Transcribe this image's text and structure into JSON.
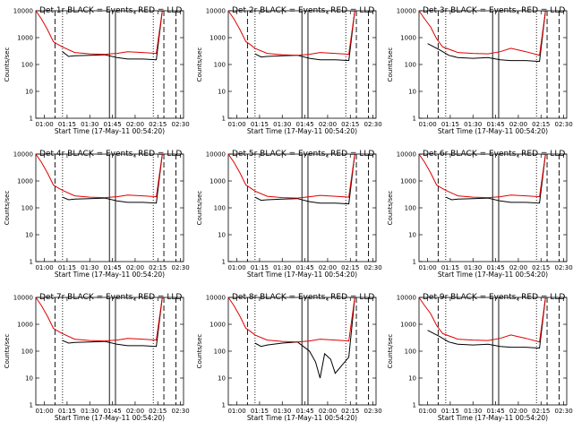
{
  "common": {
    "ylabel": "Counts/sec",
    "xlabel": "Start Time (17-May-11 00:54:20)",
    "x_tick_labels": [
      "01:00",
      "01:15",
      "01:30",
      "01:45",
      "02:00",
      "02:15",
      "02:30"
    ],
    "y_tick_labels": [
      "1",
      "10",
      "100",
      "1000",
      "10000"
    ]
  },
  "chart_data": [
    {
      "type": "line",
      "title": "Det 1r BLACK = Events, RED = LLD",
      "y_scale": "log",
      "xlim": [
        "00:54:20",
        "02:32:00"
      ],
      "ylim": [
        1,
        10000
      ],
      "x_ticks": [
        "01:00",
        "01:15",
        "01:30",
        "01:45",
        "02:00",
        "02:15",
        "02:30"
      ],
      "y_ticks": [
        1,
        10,
        100,
        1000,
        10000
      ],
      "vlines_solid": [
        "01:43",
        "01:47"
      ],
      "vlines_dashed": [
        "01:07",
        "02:19",
        "02:27"
      ],
      "vlines_dotted": [
        "01:12",
        "02:12"
      ],
      "series": [
        {
          "name": "Events",
          "color": "#000000",
          "x": [
            "01:12",
            "01:16",
            "01:20",
            "01:30",
            "01:40",
            "01:48",
            "01:55",
            "02:05",
            "02:14",
            "02:18"
          ],
          "y": [
            300,
            200,
            210,
            220,
            230,
            180,
            160,
            160,
            150,
            10000
          ]
        },
        {
          "name": "LLD",
          "color": "#e00000",
          "x": [
            "00:54",
            "00:58",
            "01:02",
            "01:06",
            "01:08",
            "01:12",
            "01:20",
            "01:30",
            "01:40",
            "01:48",
            "01:55",
            "02:05",
            "02:14",
            "02:18"
          ],
          "y": [
            10000,
            5000,
            2000,
            700,
            600,
            450,
            280,
            250,
            240,
            260,
            300,
            280,
            260,
            10000
          ]
        }
      ]
    },
    {
      "type": "line",
      "title": "Det 2r BLACK = Events, RED = LLD",
      "y_scale": "log",
      "xlim": [
        "00:54:20",
        "02:32:00"
      ],
      "ylim": [
        1,
        10000
      ],
      "x_ticks": [
        "01:00",
        "01:15",
        "01:30",
        "01:45",
        "02:00",
        "02:15",
        "02:30"
      ],
      "y_ticks": [
        1,
        10,
        100,
        1000,
        10000
      ],
      "vlines_solid": [
        "01:43",
        "01:47"
      ],
      "vlines_dashed": [
        "01:07",
        "02:19",
        "02:27"
      ],
      "vlines_dotted": [
        "01:12",
        "02:12"
      ],
      "series": [
        {
          "name": "Events",
          "color": "#000000",
          "x": [
            "01:12",
            "01:16",
            "01:20",
            "01:30",
            "01:40",
            "01:48",
            "01:55",
            "02:05",
            "02:14",
            "02:18"
          ],
          "y": [
            250,
            190,
            200,
            210,
            220,
            170,
            150,
            150,
            140,
            10000
          ]
        },
        {
          "name": "LLD",
          "color": "#e00000",
          "x": [
            "00:54",
            "00:58",
            "01:02",
            "01:06",
            "01:08",
            "01:12",
            "01:20",
            "01:30",
            "01:40",
            "01:48",
            "01:55",
            "02:05",
            "02:14",
            "02:18"
          ],
          "y": [
            10000,
            5000,
            2000,
            700,
            600,
            400,
            260,
            230,
            220,
            240,
            280,
            260,
            240,
            10000
          ]
        }
      ]
    },
    {
      "type": "line",
      "title": "Det 3r BLACK = Events, RED = LLD",
      "y_scale": "log",
      "xlim": [
        "00:54:20",
        "02:32:00"
      ],
      "ylim": [
        1,
        10000
      ],
      "x_ticks": [
        "01:00",
        "01:15",
        "01:30",
        "01:45",
        "02:00",
        "02:15",
        "02:30"
      ],
      "y_ticks": [
        1,
        10,
        100,
        1000,
        10000
      ],
      "vlines_solid": [
        "01:43",
        "01:47"
      ],
      "vlines_dashed": [
        "01:07",
        "02:19",
        "02:27"
      ],
      "vlines_dotted": [
        "01:12",
        "02:12"
      ],
      "series": [
        {
          "name": "Events",
          "color": "#000000",
          "x": [
            "01:00",
            "01:08",
            "01:14",
            "01:20",
            "01:30",
            "01:40",
            "01:48",
            "01:55",
            "02:05",
            "02:14",
            "02:18"
          ],
          "y": [
            600,
            350,
            220,
            180,
            170,
            180,
            150,
            140,
            140,
            130,
            10000
          ]
        },
        {
          "name": "LLD",
          "color": "#e00000",
          "x": [
            "00:54",
            "00:58",
            "01:02",
            "01:06",
            "01:10",
            "01:20",
            "01:30",
            "01:40",
            "01:48",
            "01:55",
            "02:05",
            "02:14",
            "02:18"
          ],
          "y": [
            10000,
            5000,
            2500,
            900,
            450,
            280,
            260,
            250,
            300,
            400,
            300,
            220,
            10000
          ]
        }
      ]
    },
    {
      "type": "line",
      "title": "Det 4r BLACK = Events, RED = LLD",
      "y_scale": "log",
      "xlim": [
        "00:54:20",
        "02:32:00"
      ],
      "ylim": [
        1,
        10000
      ],
      "x_ticks": [
        "01:00",
        "01:15",
        "01:30",
        "01:45",
        "02:00",
        "02:15",
        "02:30"
      ],
      "y_ticks": [
        1,
        10,
        100,
        1000,
        10000
      ],
      "vlines_solid": [
        "01:43",
        "01:47"
      ],
      "vlines_dashed": [
        "01:07",
        "02:19",
        "02:27"
      ],
      "vlines_dotted": [
        "01:12",
        "02:12"
      ],
      "series": [
        {
          "name": "Events",
          "color": "#000000",
          "x": [
            "01:12",
            "01:16",
            "01:20",
            "01:30",
            "01:40",
            "01:48",
            "01:55",
            "02:05",
            "02:14",
            "02:18"
          ],
          "y": [
            250,
            200,
            210,
            220,
            230,
            180,
            160,
            160,
            150,
            10000
          ]
        },
        {
          "name": "LLD",
          "color": "#e00000",
          "x": [
            "00:54",
            "00:58",
            "01:02",
            "01:06",
            "01:08",
            "01:12",
            "01:20",
            "01:30",
            "01:40",
            "01:48",
            "01:55",
            "02:05",
            "02:14",
            "02:18"
          ],
          "y": [
            10000,
            5000,
            2000,
            700,
            600,
            450,
            280,
            250,
            240,
            260,
            300,
            280,
            260,
            10000
          ]
        }
      ]
    },
    {
      "type": "line",
      "title": "Det 5r BLACK = Events, RED = LLD",
      "y_scale": "log",
      "xlim": [
        "00:54:20",
        "02:32:00"
      ],
      "ylim": [
        1,
        10000
      ],
      "x_ticks": [
        "01:00",
        "01:15",
        "01:30",
        "01:45",
        "02:00",
        "02:15",
        "02:30"
      ],
      "y_ticks": [
        1,
        10,
        100,
        1000,
        10000
      ],
      "vlines_solid": [
        "01:43",
        "01:47"
      ],
      "vlines_dashed": [
        "01:07",
        "02:19",
        "02:27"
      ],
      "vlines_dotted": [
        "01:12",
        "02:12"
      ],
      "series": [
        {
          "name": "Events",
          "color": "#000000",
          "x": [
            "01:12",
            "01:16",
            "01:20",
            "01:30",
            "01:40",
            "01:48",
            "01:55",
            "02:05",
            "02:14",
            "02:18"
          ],
          "y": [
            250,
            190,
            200,
            210,
            220,
            170,
            150,
            150,
            140,
            10000
          ]
        },
        {
          "name": "LLD",
          "color": "#e00000",
          "x": [
            "00:54",
            "00:58",
            "01:02",
            "01:06",
            "01:08",
            "01:12",
            "01:20",
            "01:30",
            "01:40",
            "01:48",
            "01:55",
            "02:05",
            "02:14",
            "02:18"
          ],
          "y": [
            10000,
            5000,
            2000,
            700,
            600,
            420,
            270,
            240,
            230,
            260,
            290,
            270,
            250,
            10000
          ]
        }
      ]
    },
    {
      "type": "line",
      "title": "Det 6r BLACK = Events, RED = LLD",
      "y_scale": "log",
      "xlim": [
        "00:54:20",
        "02:32:00"
      ],
      "ylim": [
        1,
        10000
      ],
      "x_ticks": [
        "01:00",
        "01:15",
        "01:30",
        "01:45",
        "02:00",
        "02:15",
        "02:30"
      ],
      "y_ticks": [
        1,
        10,
        100,
        1000,
        10000
      ],
      "vlines_solid": [
        "01:43",
        "01:47"
      ],
      "vlines_dashed": [
        "01:07",
        "02:19",
        "02:27"
      ],
      "vlines_dotted": [
        "01:12",
        "02:12"
      ],
      "series": [
        {
          "name": "Events",
          "color": "#000000",
          "x": [
            "01:12",
            "01:16",
            "01:20",
            "01:30",
            "01:40",
            "01:48",
            "01:55",
            "02:05",
            "02:14",
            "02:18"
          ],
          "y": [
            250,
            200,
            210,
            220,
            230,
            180,
            160,
            160,
            150,
            10000
          ]
        },
        {
          "name": "LLD",
          "color": "#e00000",
          "x": [
            "00:54",
            "00:58",
            "01:02",
            "01:06",
            "01:08",
            "01:12",
            "01:20",
            "01:30",
            "01:40",
            "01:48",
            "01:55",
            "02:05",
            "02:14",
            "02:18"
          ],
          "y": [
            10000,
            5000,
            2000,
            700,
            600,
            450,
            280,
            250,
            240,
            260,
            300,
            280,
            260,
            10000
          ]
        }
      ]
    },
    {
      "type": "line",
      "title": "Det 7r BLACK = Events, RED = LLD",
      "y_scale": "log",
      "xlim": [
        "00:54:20",
        "02:32:00"
      ],
      "ylim": [
        1,
        10000
      ],
      "x_ticks": [
        "01:00",
        "01:15",
        "01:30",
        "01:45",
        "02:00",
        "02:15",
        "02:30"
      ],
      "y_ticks": [
        1,
        10,
        100,
        1000,
        10000
      ],
      "vlines_solid": [
        "01:43",
        "01:47"
      ],
      "vlines_dashed": [
        "01:07",
        "02:19",
        "02:27"
      ],
      "vlines_dotted": [
        "01:12",
        "02:12"
      ],
      "series": [
        {
          "name": "Events",
          "color": "#000000",
          "x": [
            "01:12",
            "01:16",
            "01:20",
            "01:30",
            "01:40",
            "01:48",
            "01:55",
            "02:05",
            "02:14",
            "02:18"
          ],
          "y": [
            250,
            200,
            210,
            220,
            230,
            180,
            160,
            160,
            150,
            10000
          ]
        },
        {
          "name": "LLD",
          "color": "#e00000",
          "x": [
            "00:54",
            "00:58",
            "01:02",
            "01:06",
            "01:08",
            "01:12",
            "01:20",
            "01:30",
            "01:40",
            "01:48",
            "01:55",
            "02:05",
            "02:14",
            "02:18"
          ],
          "y": [
            10000,
            5000,
            2000,
            700,
            600,
            450,
            280,
            250,
            240,
            260,
            300,
            280,
            260,
            10000
          ]
        }
      ]
    },
    {
      "type": "line",
      "title": "Det 8r BLACK = Events, RED = LLD",
      "y_scale": "log",
      "xlim": [
        "00:54:20",
        "02:32:00"
      ],
      "ylim": [
        1,
        10000
      ],
      "x_ticks": [
        "01:00",
        "01:15",
        "01:30",
        "01:45",
        "02:00",
        "02:15",
        "02:30"
      ],
      "y_ticks": [
        1,
        10,
        100,
        1000,
        10000
      ],
      "vlines_solid": [
        "01:43",
        "01:47"
      ],
      "vlines_dashed": [
        "01:07",
        "02:19",
        "02:27"
      ],
      "vlines_dotted": [
        "01:12",
        "02:12"
      ],
      "series": [
        {
          "name": "Events",
          "color": "#000000",
          "x": [
            "01:12",
            "01:16",
            "01:20",
            "01:30",
            "01:40",
            "01:48",
            "01:52",
            "01:55",
            "01:58",
            "02:02",
            "02:05",
            "02:14",
            "02:18"
          ],
          "y": [
            200,
            150,
            170,
            200,
            220,
            100,
            40,
            10,
            80,
            50,
            15,
            60,
            10000
          ]
        },
        {
          "name": "LLD",
          "color": "#e00000",
          "x": [
            "00:54",
            "00:58",
            "01:02",
            "01:06",
            "01:08",
            "01:12",
            "01:20",
            "01:30",
            "01:40",
            "01:48",
            "01:55",
            "02:05",
            "02:14",
            "02:18"
          ],
          "y": [
            10000,
            5000,
            2000,
            700,
            600,
            400,
            260,
            230,
            220,
            240,
            280,
            260,
            240,
            10000
          ]
        }
      ]
    },
    {
      "type": "line",
      "title": "Det 9r BLACK = Events, RED = LLD",
      "y_scale": "log",
      "xlim": [
        "00:54:20",
        "02:32:00"
      ],
      "ylim": [
        1,
        10000
      ],
      "x_ticks": [
        "01:00",
        "01:15",
        "01:30",
        "01:45",
        "02:00",
        "02:15",
        "02:30"
      ],
      "y_ticks": [
        1,
        10,
        100,
        1000,
        10000
      ],
      "vlines_solid": [
        "01:43",
        "01:47"
      ],
      "vlines_dashed": [
        "01:07",
        "02:19",
        "02:27"
      ],
      "vlines_dotted": [
        "01:12",
        "02:12"
      ],
      "series": [
        {
          "name": "Events",
          "color": "#000000",
          "x": [
            "01:00",
            "01:08",
            "01:14",
            "01:20",
            "01:30",
            "01:40",
            "01:48",
            "01:55",
            "02:05",
            "02:14",
            "02:18"
          ],
          "y": [
            600,
            350,
            220,
            180,
            170,
            180,
            150,
            140,
            140,
            130,
            10000
          ]
        },
        {
          "name": "LLD",
          "color": "#e00000",
          "x": [
            "00:54",
            "00:58",
            "01:02",
            "01:06",
            "01:10",
            "01:20",
            "01:30",
            "01:40",
            "01:48",
            "01:55",
            "02:05",
            "02:14",
            "02:18"
          ],
          "y": [
            10000,
            5000,
            2500,
            900,
            450,
            280,
            260,
            250,
            300,
            400,
            300,
            220,
            10000
          ]
        }
      ]
    }
  ]
}
